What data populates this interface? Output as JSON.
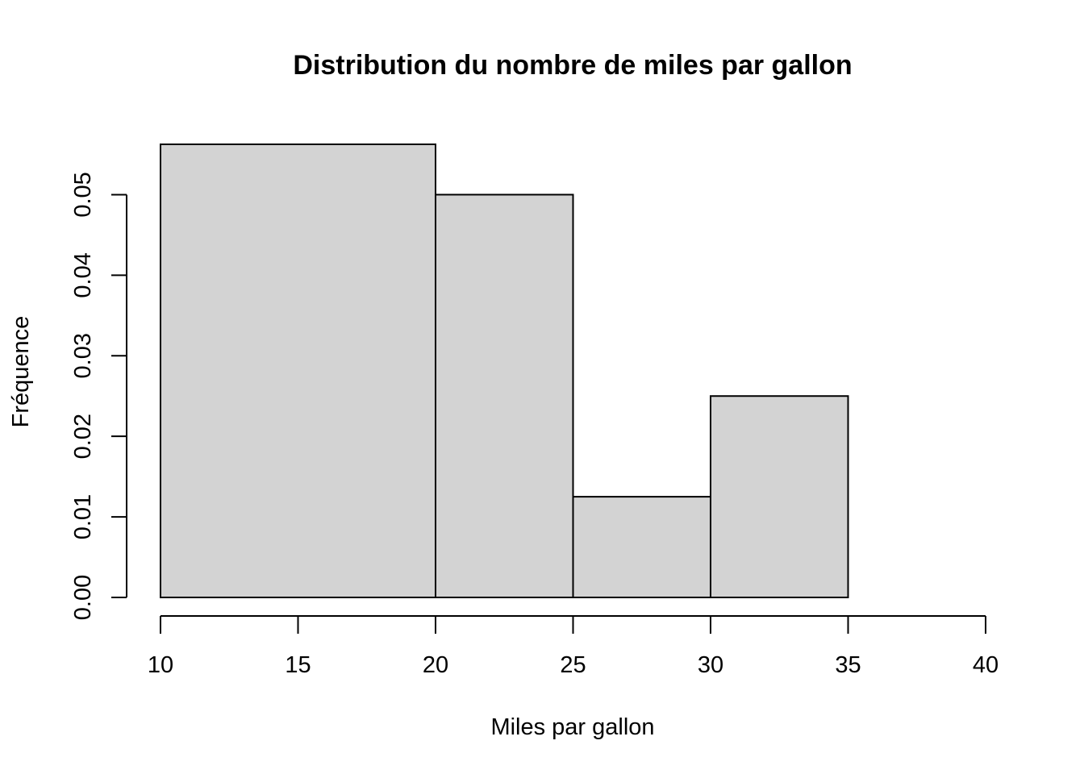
{
  "chart_data": {
    "type": "bar",
    "title": "Distribution du nombre de miles par gallon",
    "xlabel": "Miles par gallon",
    "ylabel": "Fréquence",
    "bins": [
      {
        "from": 10,
        "to": 20,
        "density": 0.05625
      },
      {
        "from": 20,
        "to": 25,
        "density": 0.05
      },
      {
        "from": 25,
        "to": 30,
        "density": 0.0125
      },
      {
        "from": 30,
        "to": 35,
        "density": 0.025
      },
      {
        "from": 35,
        "to": 40,
        "density": 0
      }
    ],
    "xlim": [
      10,
      40
    ],
    "ylim": [
      0,
      0.05625
    ],
    "x_ticks": [
      10,
      15,
      20,
      25,
      30,
      35,
      40
    ],
    "x_tick_labels": [
      "10",
      "15",
      "20",
      "25",
      "30",
      "35",
      "40"
    ],
    "y_ticks": [
      0,
      0.01,
      0.02,
      0.03,
      0.04,
      0.05
    ],
    "y_tick_labels": [
      "0.00",
      "0.01",
      "0.02",
      "0.03",
      "0.04",
      "0.05"
    ],
    "grid": false,
    "colors": {
      "bar_fill": "#d3d3d3",
      "bar_stroke": "#000000"
    }
  }
}
